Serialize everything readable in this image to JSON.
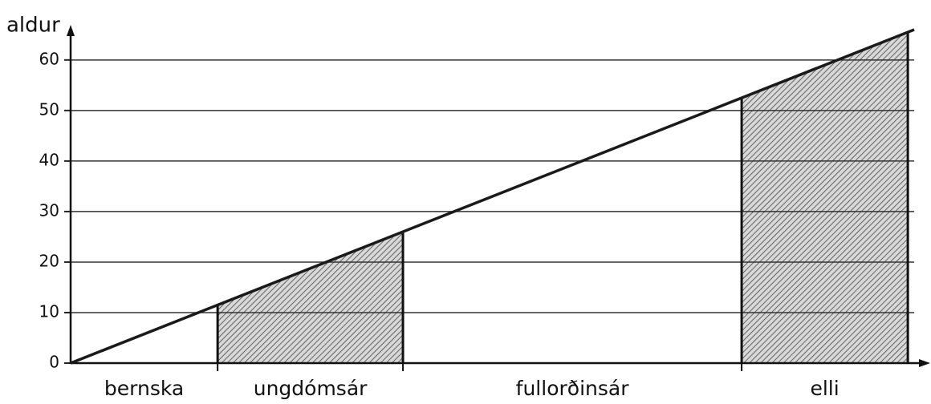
{
  "chart_data": {
    "type": "line",
    "y_label": "aldur",
    "xlim": [
      0,
      67
    ],
    "ylim": [
      0,
      66
    ],
    "yticks": [
      0,
      10,
      20,
      30,
      40,
      50,
      60
    ],
    "grid": true,
    "color": "#1a1a1a",
    "line": {
      "x": [
        0,
        66
      ],
      "values": [
        0,
        66
      ]
    },
    "stages": [
      {
        "name": "bernska",
        "start": 0,
        "end": 11.5,
        "shaded": false
      },
      {
        "name": "ungdómsár",
        "start": 11.5,
        "end": 26,
        "shaded": true
      },
      {
        "name": "fullorðinsár",
        "start": 26,
        "end": 52.5,
        "shaded": false
      },
      {
        "name": "elli",
        "start": 52.5,
        "end": 65.5,
        "shaded": true
      }
    ]
  }
}
